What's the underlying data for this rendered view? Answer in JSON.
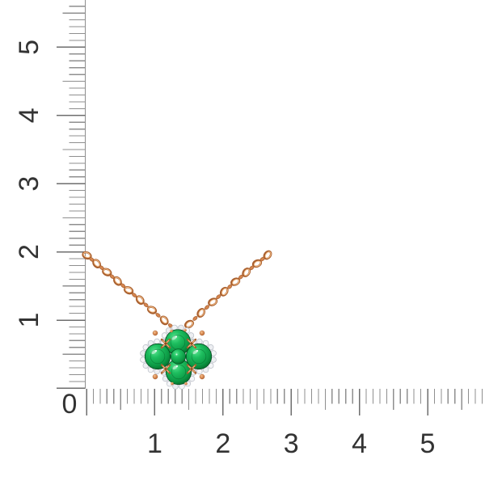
{
  "scene": {
    "background": "#ffffff"
  },
  "rulers": {
    "vertical": {
      "origin_label": "0",
      "labels": [
        "1",
        "2",
        "3",
        "4",
        "5"
      ]
    },
    "horizontal": {
      "labels": [
        "1",
        "2",
        "3",
        "4",
        "5"
      ]
    },
    "colors": {
      "tick": "#8f8f8f",
      "major_tick": "#6e6e6e",
      "number": "#333333"
    }
  },
  "product": {
    "name": "emerald-clover-halo-pendant-necklace",
    "pendant_outer_stones": 4,
    "pendant_center_stones": 1,
    "halo": "diamond",
    "colors": {
      "rose_gold": "#d4854f",
      "rose_gold_dark": "#a9602f",
      "rose_gold_light": "#f6c08c",
      "emerald": "#0fa44a",
      "emerald_light": "#55e48e",
      "emerald_dark": "#03571f",
      "diamond": "#f4f5f7",
      "diamond_edge": "#b9bdc6",
      "halo_base": "#e9eaed"
    }
  }
}
